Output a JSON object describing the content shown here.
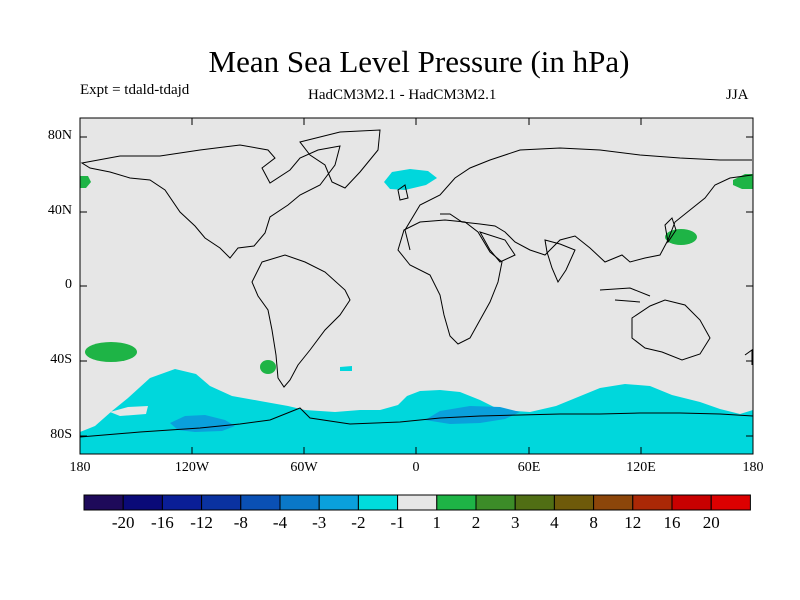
{
  "title": "Mean Sea Level Pressure (in hPa)",
  "experiment": "Expt = tdald-tdajd",
  "models": "HadCM3M2.1 - HadCM3M2.1",
  "season": "JJA",
  "map": {
    "projection": "cylindrical equidistant",
    "lon_range": [
      -180,
      180
    ],
    "lat_range": [
      -90,
      90
    ],
    "background_color": "#e6e6e6",
    "coastline_color": "#000000",
    "y_ticks": [
      "80N",
      "40N",
      "0",
      "40S",
      "80S"
    ],
    "x_ticks": [
      "180",
      "120W",
      "60W",
      "0",
      "60E",
      "120E",
      "180"
    ]
  },
  "colorbar": {
    "labels": [
      "-20",
      "-16",
      "-12",
      "-8",
      "-4",
      "-3",
      "-2",
      "-1",
      "1",
      "2",
      "3",
      "4",
      "8",
      "12",
      "16",
      "20"
    ],
    "colors": [
      "#1e0a5a",
      "#0a0a78",
      "#0a1e96",
      "#0a32a0",
      "#0a50b4",
      "#0a78c8",
      "#0aa0dc",
      "#00dcdc",
      "#e6e6e6",
      "#1eb446",
      "#3c8c28",
      "#506e14",
      "#6e5a0a",
      "#8c460a",
      "#aa2806",
      "#c80000",
      "#dc0000"
    ]
  },
  "fields": {
    "negative_light": "#00d7dc",
    "negative_medium": "#0aa0dc",
    "positive": "#1eb446"
  }
}
